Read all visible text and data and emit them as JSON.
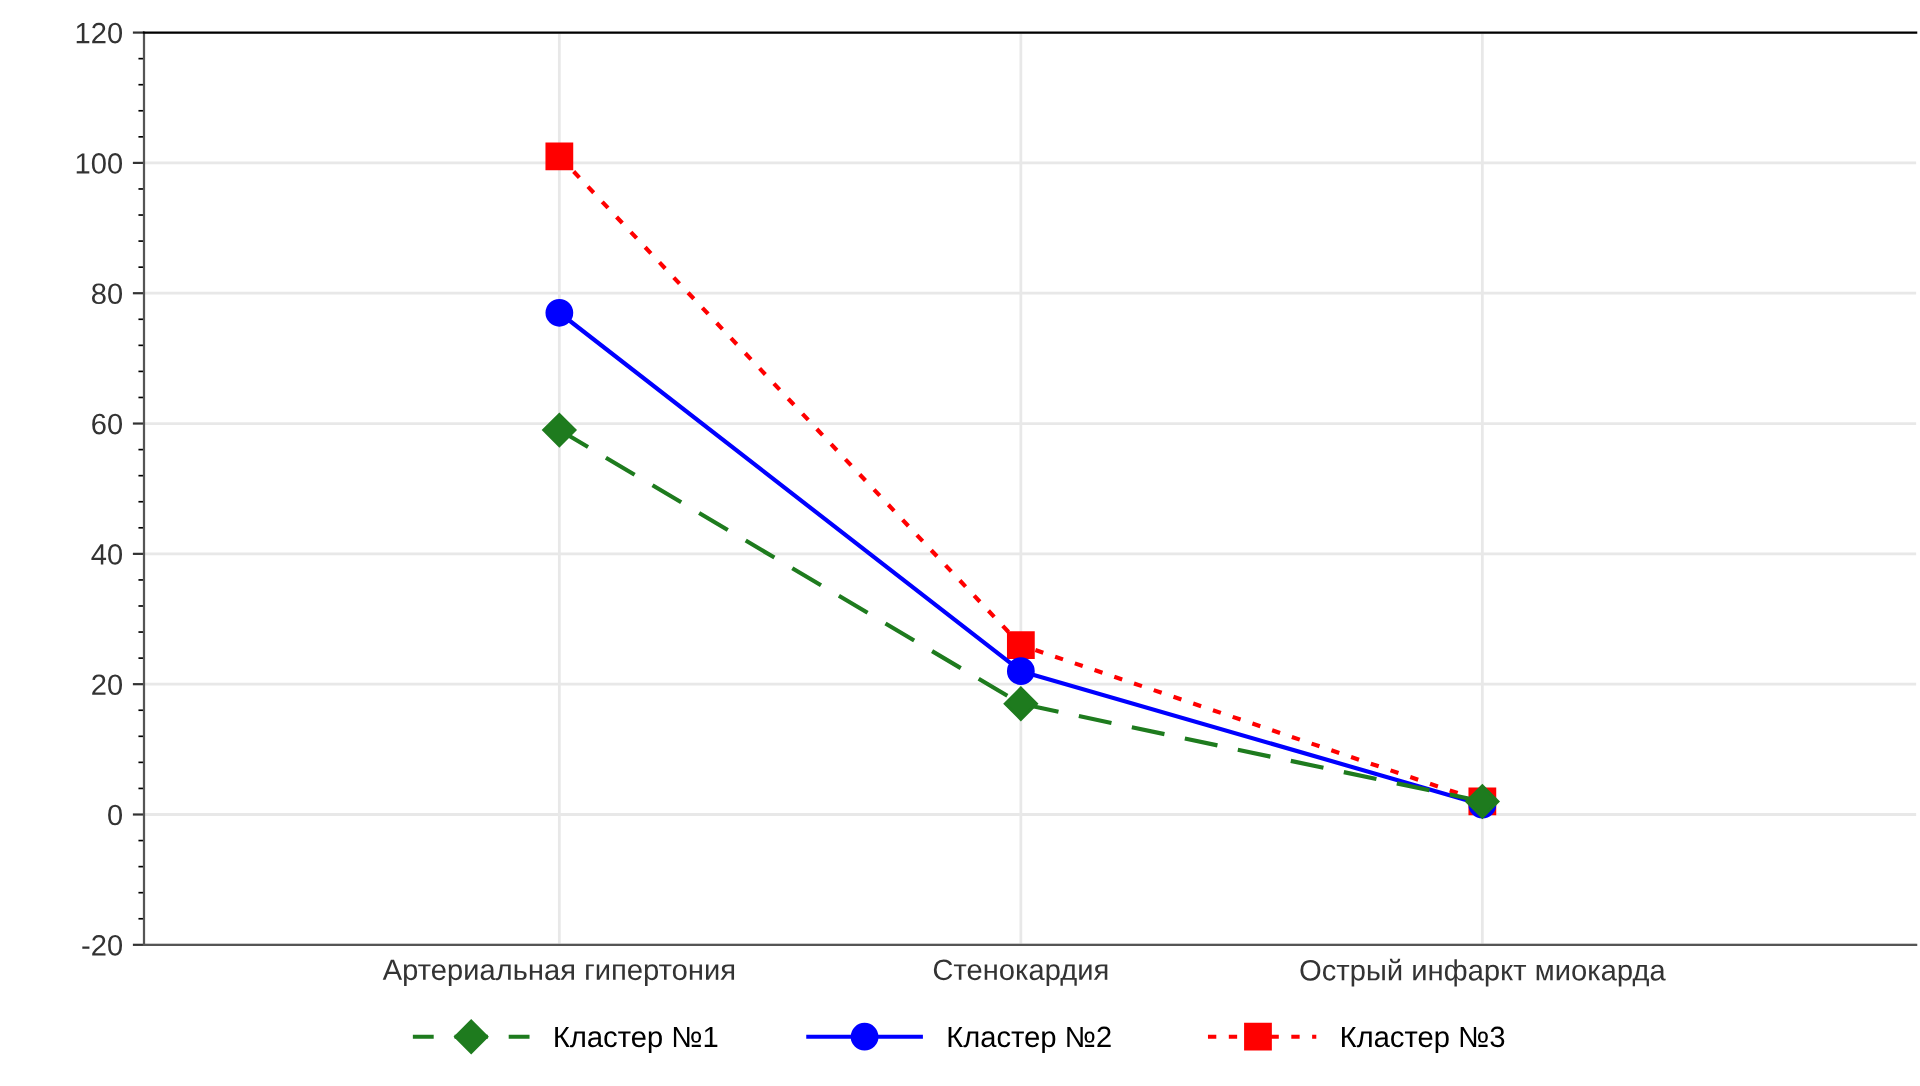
{
  "chart_data": {
    "type": "line",
    "categories": [
      "Артериальная гипертония",
      "Стенокардия",
      "Острый инфаркт миокарда"
    ],
    "series": [
      {
        "name": "Кластер №1",
        "color": "#1e7b1e",
        "values": [
          59,
          17,
          2
        ],
        "marker": "diamond",
        "line_style": "dashed"
      },
      {
        "name": "Кластер №2",
        "color": "#0000ff",
        "values": [
          77,
          22,
          1.5
        ],
        "marker": "circle",
        "line_style": "solid"
      },
      {
        "name": "Кластер №3",
        "color": "#ff0000",
        "values": [
          101,
          26,
          2
        ],
        "marker": "square",
        "line_style": "dotted"
      }
    ],
    "ylim": [
      -20,
      120
    ],
    "yticks": [
      -20,
      0,
      20,
      40,
      60,
      80,
      100,
      120
    ],
    "grid": true,
    "legend": "bottom"
  }
}
